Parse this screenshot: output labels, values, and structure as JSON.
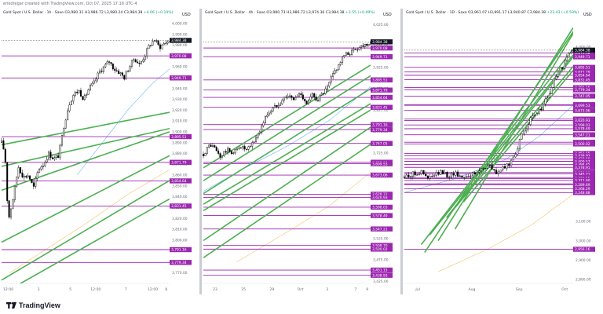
{
  "header": {
    "note": "erikdregar created with TradingView.com, Oct 07, 2025 17:16 UTC-4"
  },
  "brand": {
    "name": "TradingView"
  },
  "colors": {
    "up": "#ffffff",
    "down": "#000000",
    "channel": "#4caf50",
    "level": "#9c27b0",
    "ma1": "#64b5f6",
    "ma2": "#f5c26b"
  },
  "chart_data": [
    {
      "type": "candlestick",
      "title_parts": {
        "symbol": "Gold Spot / U.S. Dollar · 1h · Saxo",
        "ohlc": "O3,980.31 H3,986.72 L3,980.24 C3,984.38",
        "change": "+4.06 (+0.10%)"
      },
      "currency": "USD",
      "ylim": [
        3760,
        4005
      ],
      "yticks": [
        4000,
        3990,
        3980,
        3970,
        3960,
        3950,
        3940,
        3930,
        3920,
        3910,
        3900,
        3890,
        3880,
        3870,
        3860,
        3850,
        3840,
        3830,
        3820,
        3810,
        3800,
        3790,
        3780,
        3770
      ],
      "ytick_labels": [
        "4,000.00",
        "3,990.00",
        "3,980.00",
        "3,970.00",
        "3,960.00",
        "3,950.00",
        "3,940.00",
        "3,930.00",
        "3,920.00",
        "3,910.00",
        "3,900.00",
        "3,890.00",
        "3,880.00",
        "3,870.00",
        "3,860.00",
        "3,850.00",
        "3,840.00",
        "3,830.00",
        "3,820.00",
        "3,810.00",
        "3,800.00",
        "3,790.00",
        "3,780.00",
        "3,770.00"
      ],
      "xlabels": [
        {
          "t": 0.04,
          "label": "12:00"
        },
        {
          "t": 0.22,
          "label": "3"
        },
        {
          "t": 0.41,
          "label": "5"
        },
        {
          "t": 0.56,
          "label": "12:00"
        },
        {
          "t": 0.74,
          "label": "7"
        },
        {
          "t": 0.9,
          "label": "12:00"
        },
        {
          "t": 1.06,
          "label": "8"
        }
      ],
      "current_price": 3984.38,
      "current_label": "3,984.38",
      "levels": [
        3970.08,
        3949.71,
        3895.51,
        3871.79,
        3854.64,
        3831.45,
        3791.16,
        3779.34
      ],
      "level_labels": [
        "3,970.08",
        "3,949.71",
        "3,895.51",
        "3,871.79",
        "3,854.64",
        "3,831.45",
        "3,791.16",
        "3,779.34"
      ],
      "channels": [
        [
          0,
          3888,
          1,
          3918
        ],
        [
          0,
          3868,
          1,
          3903
        ],
        [
          0,
          3846,
          1,
          3900
        ],
        [
          0,
          3798,
          1,
          3878
        ],
        [
          0,
          3763,
          1,
          3855
        ],
        [
          0,
          3750,
          1,
          3838
        ]
      ],
      "ma_fast": [
        [
          0.45,
          3860
        ],
        [
          0.6,
          3890
        ],
        [
          0.75,
          3920
        ],
        [
          0.9,
          3945
        ],
        [
          1,
          3958
        ]
      ],
      "ma_slow": [
        [
          0.05,
          3770
        ],
        [
          0.25,
          3790
        ],
        [
          0.5,
          3815
        ],
        [
          0.75,
          3842
        ],
        [
          1,
          3865
        ]
      ],
      "path": [
        [
          0,
          3890
        ],
        [
          0.02,
          3880
        ],
        [
          0.04,
          3818
        ],
        [
          0.07,
          3840
        ],
        [
          0.1,
          3868
        ],
        [
          0.13,
          3858
        ],
        [
          0.16,
          3860
        ],
        [
          0.19,
          3848
        ],
        [
          0.22,
          3866
        ],
        [
          0.25,
          3870
        ],
        [
          0.28,
          3880
        ],
        [
          0.31,
          3875
        ],
        [
          0.34,
          3878
        ],
        [
          0.37,
          3905
        ],
        [
          0.4,
          3925
        ],
        [
          0.43,
          3935
        ],
        [
          0.46,
          3938
        ],
        [
          0.49,
          3930
        ],
        [
          0.52,
          3940
        ],
        [
          0.55,
          3945
        ],
        [
          0.58,
          3955
        ],
        [
          0.61,
          3960
        ],
        [
          0.64,
          3965
        ],
        [
          0.67,
          3958
        ],
        [
          0.7,
          3955
        ],
        [
          0.73,
          3950
        ],
        [
          0.76,
          3960
        ],
        [
          0.79,
          3968
        ],
        [
          0.82,
          3962
        ],
        [
          0.85,
          3970
        ],
        [
          0.88,
          3980
        ],
        [
          0.91,
          3985
        ],
        [
          0.94,
          3978
        ],
        [
          0.97,
          3982
        ],
        [
          1,
          3984
        ]
      ]
    },
    {
      "type": "candlestick",
      "title_parts": {
        "symbol": "Gold Spot / U.S. Dollar · 4h · Saxo",
        "ohlc": "O3,980.73 H3,986.72 L3,974.36 C3,984.38",
        "change": "+3.55 (+0.09%)"
      },
      "currency": "USD",
      "ylim": [
        3420,
        4040
      ],
      "yticks": [
        4025,
        3975,
        3925,
        3875,
        3825,
        3775,
        3725,
        3675,
        3625,
        3575,
        3525,
        3475,
        3425
      ],
      "ytick_labels": [
        "4,025.00",
        "3,975.00",
        "3,925.00",
        "3,875.00",
        "3,825.00",
        "3,775.00",
        "3,725.00",
        "3,675.00",
        "3,625.00",
        "3,575.00",
        "3,525.00",
        "3,475.00",
        "3,425.00"
      ],
      "xlabels": [
        {
          "t": 0.07,
          "label": "23"
        },
        {
          "t": 0.24,
          "label": "25"
        },
        {
          "t": 0.41,
          "label": "29"
        },
        {
          "t": 0.58,
          "label": "Oct"
        },
        {
          "t": 0.74,
          "label": "3"
        },
        {
          "t": 0.91,
          "label": "7"
        },
        {
          "t": 1.07,
          "label": "9"
        }
      ],
      "current_price": 3984.38,
      "current_label": "3,984.38",
      "levels": [
        3970.08,
        3949.71,
        3895.51,
        3871.79,
        3854.64,
        3831.45,
        3791.16,
        3779.34,
        3747.05,
        3703.03,
        3699.53,
        3673.06,
        3628.31,
        3620.93,
        3598.03,
        3578.49,
        3547.21,
        3508.7,
        3500.02,
        3451.15,
        3438.93
      ],
      "level_labels": [
        "3,970.08",
        "3,949.71",
        "3,895.51",
        "3,871.79",
        "3,854.64",
        "3,831.45",
        "3,791.16",
        "3,779.34",
        "3,747.05",
        "3,703.03",
        "3,699.53",
        "3,673.06",
        "3,628.31",
        "3,620.93",
        "3,598.03",
        "3,578.49",
        "3,547.21",
        "3,508.70",
        "3,500.02",
        "3,451.15",
        "3,438.93"
      ],
      "channels": [
        [
          0,
          3690,
          1,
          3930
        ],
        [
          0,
          3660,
          1,
          3905
        ],
        [
          0,
          3630,
          1,
          3875
        ],
        [
          0,
          3605,
          1,
          3840
        ],
        [
          0,
          3590,
          1,
          3825
        ],
        [
          0,
          3520,
          1,
          3785
        ],
        [
          0,
          3480,
          1,
          3745
        ]
      ],
      "ma_fast": [
        [
          0,
          3635
        ],
        [
          0.25,
          3690
        ],
        [
          0.5,
          3740
        ],
        [
          0.75,
          3800
        ],
        [
          1,
          3880
        ]
      ],
      "ma_slow": [
        [
          0.2,
          3470
        ],
        [
          0.5,
          3540
        ],
        [
          0.75,
          3600
        ],
        [
          1,
          3680
        ]
      ],
      "path": [
        [
          0,
          3722
        ],
        [
          0.04,
          3745
        ],
        [
          0.07,
          3735
        ],
        [
          0.1,
          3715
        ],
        [
          0.14,
          3732
        ],
        [
          0.18,
          3725
        ],
        [
          0.22,
          3742
        ],
        [
          0.26,
          3730
        ],
        [
          0.3,
          3750
        ],
        [
          0.34,
          3780
        ],
        [
          0.38,
          3815
        ],
        [
          0.42,
          3830
        ],
        [
          0.46,
          3845
        ],
        [
          0.5,
          3860
        ],
        [
          0.54,
          3850
        ],
        [
          0.58,
          3865
        ],
        [
          0.62,
          3840
        ],
        [
          0.65,
          3860
        ],
        [
          0.68,
          3850
        ],
        [
          0.71,
          3862
        ],
        [
          0.74,
          3875
        ],
        [
          0.77,
          3905
        ],
        [
          0.8,
          3925
        ],
        [
          0.84,
          3952
        ],
        [
          0.88,
          3960
        ],
        [
          0.92,
          3970
        ],
        [
          0.96,
          3978
        ],
        [
          1,
          3984
        ]
      ]
    },
    {
      "type": "candlestick",
      "title_parts": {
        "symbol": "Gold Spot / U.S. Dollar · 1D · Saxo",
        "ohlc": "O3,961.07 H3,991.17 L3,940.87 C3,984.38",
        "change": "+23.43 (+0.59%)"
      },
      "currency": "USD",
      "ylim": [
        2780,
        4150
      ],
      "yticks": [
        4000,
        3900,
        3750,
        3600,
        3400,
        3250,
        3100,
        3000,
        2900,
        2800
      ],
      "ytick_labels": [
        "4,000.00",
        "3,900.00",
        "3,750.00",
        "3,600.00",
        "3,400.00",
        "3,250.00",
        "3,100.00",
        "3,000.00",
        "2,900.00",
        "2,800.00"
      ],
      "xlabels": [
        {
          "t": 0.08,
          "label": "Jul"
        },
        {
          "t": 0.4,
          "label": "Aug"
        },
        {
          "t": 0.68,
          "label": "Sep"
        },
        {
          "t": 0.95,
          "label": "Oct"
        }
      ],
      "current_price": 3984.38,
      "current_label": "3,984.38",
      "levels": [
        3970.08,
        3949.71,
        3895.51,
        3871.79,
        3854.64,
        3831.45,
        3791.16,
        3779.34,
        3747.05,
        3703.03,
        3699.53,
        3673.06,
        3628.31,
        3620.93,
        3598.03,
        3578.49,
        3547.21,
        3508.7,
        3500.02,
        3451.15,
        3438.93,
        3423.1,
        3410.5,
        3409.57,
        3394.45,
        3378.91,
        3352.18,
        3345.21,
        3326.38,
        3321.55,
        3311.6,
        3293.99,
        3289.69,
        3268.29,
        3248.88,
        2956.16
      ],
      "level_labels": [
        "3,970.08",
        "3,949.71",
        "3,895.51",
        "3,871.79",
        "3,854.64",
        "3,831.45",
        "3,791.16",
        "3,779.34",
        "3,747.05",
        "3,703.03",
        "3,699.53",
        "3,673.06",
        "3,628.31",
        "3,620.93",
        "3,598.03",
        "3,578.49",
        "3,547.21",
        "3,508.70",
        "3,500.02",
        "3,451.15",
        "3,438.93",
        "3,423.10",
        "3,410.50",
        "3,409.57",
        "3,394.45",
        "3,378.91",
        "3,352.18",
        "3,345.21",
        "3,326.38",
        "3,321.55",
        "3,311.60",
        "3,293.99",
        "3,289.69",
        "3,268.29",
        "3,248.88",
        "2,956.16"
      ],
      "channels": [
        [
          0.12,
          2940,
          1,
          4080
        ],
        [
          0.2,
          3000,
          1,
          4100
        ],
        [
          0.3,
          3060,
          1,
          4070
        ],
        [
          0.1,
          2980,
          1,
          3990
        ],
        [
          0.15,
          3030,
          1,
          3960
        ],
        [
          0.25,
          3120,
          1,
          3950
        ],
        [
          0.28,
          3150,
          1,
          3900
        ],
        [
          0.35,
          3200,
          1,
          3880
        ]
      ],
      "ma_fast": [
        [
          0,
          3250
        ],
        [
          0.3,
          3320
        ],
        [
          0.6,
          3420
        ],
        [
          0.8,
          3540
        ],
        [
          1,
          3700
        ]
      ],
      "ma_slow": [
        [
          0.2,
          2840
        ],
        [
          0.5,
          2960
        ],
        [
          0.75,
          3080
        ],
        [
          1,
          3240
        ]
      ],
      "path": [
        [
          0,
          3330
        ],
        [
          0.05,
          3345
        ],
        [
          0.1,
          3355
        ],
        [
          0.14,
          3320
        ],
        [
          0.18,
          3340
        ],
        [
          0.22,
          3355
        ],
        [
          0.26,
          3335
        ],
        [
          0.3,
          3350
        ],
        [
          0.34,
          3330
        ],
        [
          0.38,
          3340
        ],
        [
          0.42,
          3345
        ],
        [
          0.46,
          3375
        ],
        [
          0.5,
          3390
        ],
        [
          0.54,
          3350
        ],
        [
          0.58,
          3370
        ],
        [
          0.62,
          3395
        ],
        [
          0.66,
          3460
        ],
        [
          0.7,
          3550
        ],
        [
          0.74,
          3620
        ],
        [
          0.78,
          3650
        ],
        [
          0.82,
          3700
        ],
        [
          0.86,
          3760
        ],
        [
          0.9,
          3860
        ],
        [
          0.94,
          3900
        ],
        [
          0.97,
          3960
        ],
        [
          1,
          3984
        ]
      ]
    }
  ]
}
